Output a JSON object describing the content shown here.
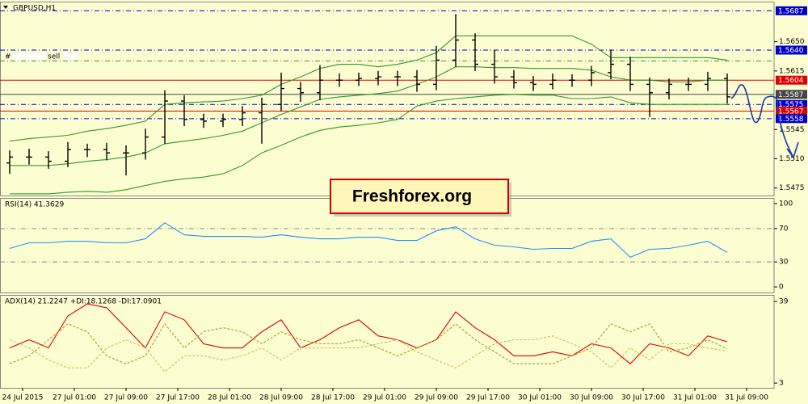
{
  "watermark": "Freshforex.org",
  "chart_data": [
    {
      "type": "ohlc",
      "title": "GBPUSD,H1",
      "annotation": "sell",
      "color": "#000000",
      "x": [
        1,
        4,
        7,
        10,
        13,
        16,
        19,
        22,
        25,
        28,
        31,
        34,
        37,
        40,
        43,
        46,
        49,
        52,
        55,
        58,
        61,
        64,
        67,
        70,
        73,
        76,
        79,
        82,
        85,
        88,
        91,
        94,
        97,
        100,
        103,
        106,
        109,
        112
      ],
      "open": [
        1.5505,
        1.5512,
        1.5512,
        1.5507,
        1.5521,
        1.5521,
        1.5517,
        1.5517,
        1.5536,
        1.5579,
        1.5557,
        1.5555,
        1.5557,
        1.5565,
        1.5575,
        1.5594,
        1.5589,
        1.5604,
        1.5604,
        1.5606,
        1.5608,
        1.5608,
        1.5599,
        1.5628,
        1.5652,
        1.5623,
        1.5608,
        1.5601,
        1.5599,
        1.5604,
        1.5604,
        1.5613,
        1.5623,
        1.5599,
        1.5589,
        1.5599,
        1.5599,
        1.5606
      ],
      "high": [
        1.552,
        1.5522,
        1.5519,
        1.553,
        1.5528,
        1.5529,
        1.5526,
        1.5546,
        1.5592,
        1.5586,
        1.5564,
        1.5564,
        1.5573,
        1.5583,
        1.5613,
        1.5602,
        1.5622,
        1.5612,
        1.5613,
        1.5615,
        1.5615,
        1.5616,
        1.5645,
        1.5683,
        1.566,
        1.564,
        1.5616,
        1.5609,
        1.5612,
        1.5611,
        1.5621,
        1.564,
        1.5632,
        1.5607,
        1.5606,
        1.5607,
        1.5614,
        1.5612
      ],
      "low": [
        1.5492,
        1.5503,
        1.5498,
        1.55,
        1.5512,
        1.5508,
        1.549,
        1.5509,
        1.5528,
        1.5549,
        1.5547,
        1.5548,
        1.5549,
        1.5528,
        1.5567,
        1.5578,
        1.558,
        1.5596,
        1.5597,
        1.5598,
        1.5597,
        1.559,
        1.5592,
        1.562,
        1.5615,
        1.56,
        1.5594,
        1.5591,
        1.5593,
        1.5596,
        1.5597,
        1.5605,
        1.5591,
        1.556,
        1.5581,
        1.5591,
        1.5591,
        1.5576
      ],
      "close": [
        1.5512,
        1.5512,
        1.5507,
        1.5521,
        1.5521,
        1.5517,
        1.5517,
        1.5536,
        1.5579,
        1.5557,
        1.5555,
        1.5557,
        1.5565,
        1.5575,
        1.5594,
        1.5589,
        1.5604,
        1.5604,
        1.5606,
        1.5608,
        1.5608,
        1.5599,
        1.5628,
        1.5652,
        1.5623,
        1.5608,
        1.5601,
        1.5599,
        1.5604,
        1.5604,
        1.5613,
        1.5623,
        1.5599,
        1.5589,
        1.5599,
        1.5599,
        1.5606,
        1.5584
      ],
      "series": [
        {
          "color": "#2e9a2e",
          "values": [
            1.5531,
            1.5534,
            1.5536,
            1.5538,
            1.5543,
            1.5546,
            1.555,
            1.5555,
            1.5575,
            1.5577,
            1.5578,
            1.5579,
            1.5582,
            1.5586,
            1.5599,
            1.5608,
            1.5618,
            1.5623,
            1.5623,
            1.562,
            1.5623,
            1.5628,
            1.5637,
            1.5657,
            1.5657,
            1.5657,
            1.5657,
            1.5657,
            1.5657,
            1.5657,
            1.5647,
            1.5631,
            1.5631,
            1.5631,
            1.5631,
            1.5631,
            1.5631,
            1.5628
          ]
        },
        {
          "color": "#2e9a2e",
          "values": [
            1.5502,
            1.5502,
            1.5502,
            1.5504,
            1.5507,
            1.5509,
            1.5512,
            1.5517,
            1.5528,
            1.5531,
            1.5534,
            1.5538,
            1.5543,
            1.5553,
            1.5563,
            1.5572,
            1.5581,
            1.5584,
            1.5586,
            1.5588,
            1.5591,
            1.5599,
            1.5608,
            1.562,
            1.562,
            1.5619,
            1.5619,
            1.5618,
            1.5618,
            1.5618,
            1.5616,
            1.5608,
            1.5604,
            1.5604,
            1.5602,
            1.5602,
            1.5604,
            1.5604
          ]
        },
        {
          "color": "#2e9a2e",
          "values": [
            1.5468,
            1.5468,
            1.5468,
            1.547,
            1.5471,
            1.547,
            1.5473,
            1.5478,
            1.5483,
            1.5486,
            1.5488,
            1.5492,
            1.5502,
            1.5517,
            1.5526,
            1.5536,
            1.5544,
            1.5548,
            1.555,
            1.5553,
            1.5557,
            1.5573,
            1.5579,
            1.5582,
            1.5584,
            1.5586,
            1.5587,
            1.5586,
            1.5586,
            1.5582,
            1.5582,
            1.5584,
            1.5577,
            1.5575,
            1.5575,
            1.5575,
            1.5575,
            1.5575
          ]
        }
      ],
      "xlim": [
        -0.5,
        119.25
      ],
      "ylim": [
        1.5466,
        1.5697
      ],
      "yticks": [
        1.5475,
        {
          "value": 1.551,
          "label": "1.5510"
        },
        1.5545,
        1.5615,
        {
          "value": 1.565,
          "label": "1.5650"
        }
      ],
      "levels": [
        {
          "value": 1.5687,
          "label": "1.5687",
          "color": "#0000cc",
          "dash": true
        },
        {
          "value": 1.564,
          "label": "1.5640",
          "color": "#0000cc",
          "dash": true
        },
        {
          "value": 1.5627,
          "color": "#2e9a2e",
          "dash": true
        },
        {
          "value": 1.5604,
          "label": "1.5604",
          "color": "#e00000",
          "dash": false
        },
        {
          "value": 1.5587,
          "label": "1.5587",
          "color": "#444444",
          "dash": false
        },
        {
          "value": 1.5575,
          "label": "1.5575",
          "color": "#0000cc",
          "dash": true
        },
        {
          "value": 1.5567,
          "label": "1.5567",
          "color": "#e00000",
          "dash": false
        },
        {
          "value": 1.5558,
          "label": "1.5558",
          "color": "#0000cc",
          "dash": true
        }
      ]
    },
    {
      "type": "line",
      "title": "RSI(14) 41.3629",
      "x": [
        1,
        4,
        7,
        10,
        13,
        16,
        19,
        22,
        25,
        28,
        31,
        34,
        37,
        40,
        43,
        46,
        49,
        52,
        55,
        58,
        61,
        64,
        67,
        70,
        73,
        76,
        79,
        82,
        85,
        88,
        91,
        94,
        97,
        100,
        103,
        106,
        109,
        112
      ],
      "series": [
        {
          "color": "#1e90ff",
          "dash": false,
          "values": [
            46.2,
            52.9,
            52.9,
            54.8,
            54.8,
            52.9,
            52.9,
            57.7,
            76.9,
            62.5,
            60.6,
            60.6,
            60.6,
            59.6,
            62.5,
            59.6,
            57.7,
            57.7,
            59.6,
            59.6,
            55.8,
            55.8,
            67.3,
            72.1,
            57.7,
            50,
            48.1,
            45.2,
            46.2,
            46.2,
            54.8,
            57.7,
            35.6,
            45.2,
            46.2,
            50,
            54.8,
            41.4
          ]
        }
      ],
      "xlim": [
        -0.5,
        119.25
      ],
      "ylim": [
        -6.7,
        105.8
      ],
      "yticks": [
        0,
        30,
        70,
        100
      ],
      "levels": [
        {
          "value": 30,
          "color": "#888888",
          "dash": true
        },
        {
          "value": 70,
          "color": "#888888",
          "dash": true
        }
      ]
    },
    {
      "type": "line",
      "title": "ADX(14) 21.2247 +DI:18.1268 -DI:17.0901",
      "x": [
        1,
        4,
        7,
        10,
        13,
        16,
        19,
        22,
        25,
        28,
        31,
        34,
        37,
        40,
        43,
        46,
        49,
        52,
        55,
        58,
        61,
        64,
        67,
        70,
        73,
        76,
        79,
        82,
        85,
        88,
        91,
        94,
        97,
        100,
        103,
        106,
        109,
        112
      ],
      "series": [
        {
          "color": "#dd0000",
          "dash": false,
          "values": [
            18.5,
            22.1,
            18.5,
            32.6,
            37.9,
            36.2,
            27.4,
            18.5,
            34.4,
            30.9,
            20.3,
            18.5,
            18.5,
            25.6,
            30.9,
            18.5,
            22.1,
            27.4,
            30.9,
            23.8,
            22.1,
            18.5,
            22.1,
            34.4,
            27.4,
            22.1,
            15,
            15,
            16.8,
            15,
            20.3,
            18.5,
            11.5,
            20.3,
            18.5,
            15,
            23.8,
            21.2
          ]
        },
        {
          "color": "#9aa020",
          "dash": true,
          "values": [
            11.5,
            15,
            22.1,
            29.1,
            25.6,
            15,
            11.5,
            15,
            29.1,
            18.5,
            25.6,
            27.4,
            25.6,
            20.3,
            25.6,
            22.1,
            20.3,
            20.3,
            22.1,
            18.5,
            15,
            18.5,
            22.1,
            29.1,
            22.1,
            16.8,
            11.5,
            11.5,
            11.5,
            15,
            18.5,
            29.1,
            25.6,
            29.1,
            16.8,
            18.5,
            22.1,
            18.1
          ]
        },
        {
          "color": "#c8c060",
          "dash": true,
          "values": [
            22.1,
            18.5,
            13.2,
            9.7,
            9.7,
            18.5,
            22.1,
            18.5,
            8,
            15,
            15,
            13.2,
            15,
            18.5,
            13.2,
            18.5,
            18.5,
            18.5,
            18.5,
            20.3,
            22.1,
            16.8,
            13.2,
            9.7,
            15,
            20.3,
            22.1,
            22.1,
            23.8,
            20.3,
            16.8,
            9.7,
            18.5,
            13.2,
            20.3,
            20.3,
            18.5,
            17.1
          ]
        }
      ],
      "xlim": [
        -0.5,
        119.25
      ],
      "ylim": [
        0.9,
        41.5
      ],
      "yticks": [
        3,
        39
      ],
      "xticks": [
        {
          "value": 3,
          "label": "24 Jul 2015"
        },
        {
          "value": 11,
          "label": "27 Jul 01:00"
        },
        {
          "value": 19,
          "label": "27 Jul 09:00"
        },
        {
          "value": 27,
          "label": "27 Jul 17:00"
        },
        {
          "value": 35,
          "label": "28 Jul 01:00"
        },
        {
          "value": 43,
          "label": "28 Jul 09:00"
        },
        {
          "value": 51,
          "label": "28 Jul 17:00"
        },
        {
          "value": 59,
          "label": "29 Jul 01:00"
        },
        {
          "value": 67,
          "label": "29 Jul 09:00"
        },
        {
          "value": 75,
          "label": "29 Jul 17:00"
        },
        {
          "value": 83,
          "label": "30 Jul 01:00"
        },
        {
          "value": 91,
          "label": "30 Jul 09:00"
        },
        {
          "value": 99,
          "label": "30 Jul 17:00"
        },
        {
          "value": 107,
          "label": "31 Jul 01:00"
        },
        {
          "value": 115,
          "label": "31 Jul 09:00"
        }
      ]
    }
  ]
}
